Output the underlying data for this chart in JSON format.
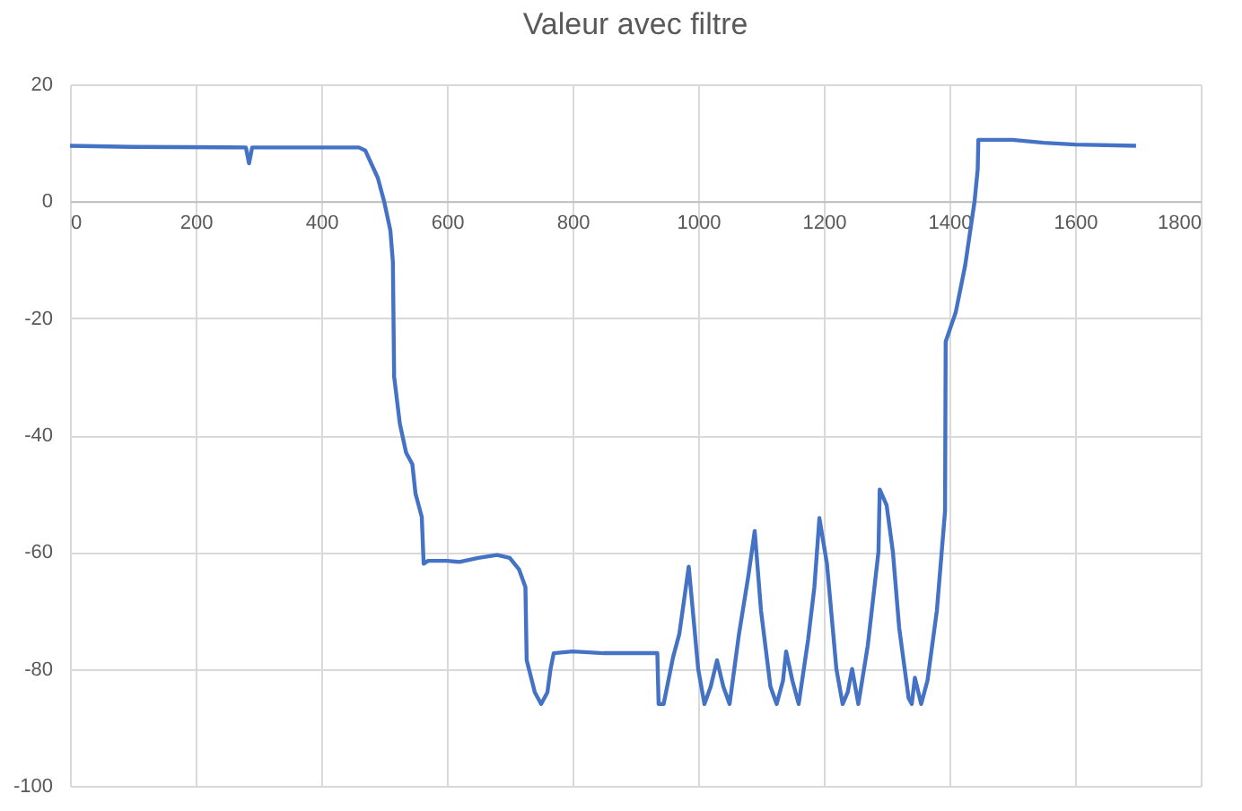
{
  "chart_data": {
    "type": "line",
    "title": "Valeur avec filtre",
    "x": [
      0,
      100,
      280,
      285,
      290,
      460,
      470,
      490,
      500,
      510,
      514,
      516,
      525,
      535,
      545,
      550,
      560,
      563,
      570,
      600,
      620,
      650,
      680,
      700,
      715,
      725,
      727,
      740,
      750,
      760,
      765,
      770,
      800,
      850,
      900,
      935,
      937,
      945,
      960,
      970,
      985,
      1000,
      1010,
      1020,
      1030,
      1040,
      1050,
      1065,
      1080,
      1090,
      1100,
      1115,
      1125,
      1135,
      1140,
      1150,
      1160,
      1175,
      1185,
      1193,
      1205,
      1220,
      1230,
      1238,
      1245,
      1255,
      1270,
      1287,
      1289,
      1300,
      1310,
      1320,
      1335,
      1340,
      1345,
      1355,
      1365,
      1380,
      1393,
      1394,
      1410,
      1425,
      1440,
      1445,
      1446,
      1500,
      1550,
      1600,
      1697
    ],
    "series": [
      {
        "color": "#4472c4",
        "values": [
          9.5,
          9.3,
          9.2,
          6.5,
          9.2,
          9.2,
          8.7,
          4,
          0,
          -5,
          -10.4,
          -30,
          -38,
          -43,
          -45,
          -50,
          -54,
          -62,
          -61.5,
          -61.5,
          -61.7,
          -61,
          -60.5,
          -61,
          -63,
          -66,
          -78.5,
          -84,
          -86,
          -84,
          -80,
          -77.3,
          -77,
          -77.3,
          -77.3,
          -77.3,
          -86,
          -86,
          -78,
          -74,
          -62.5,
          -80,
          -86,
          -83,
          -78.5,
          -83,
          -86,
          -74,
          -64,
          -56.4,
          -70,
          -83,
          -86,
          -82,
          -77,
          -82,
          -86,
          -75,
          -66,
          -54.2,
          -62,
          -80,
          -86,
          -84,
          -80,
          -86,
          -76,
          -60,
          -49.3,
          -52,
          -60,
          -73,
          -85,
          -86,
          -81.5,
          -86,
          -82,
          -70,
          -53,
          -24,
          -19,
          -11,
          0,
          5.5,
          10.5,
          10.5,
          10,
          9.7,
          9.5
        ]
      }
    ],
    "xlim": [
      0,
      1800
    ],
    "xticks": [
      0,
      200,
      400,
      600,
      800,
      1000,
      1200,
      1400,
      1600,
      1800
    ],
    "ylim": [
      -100,
      20
    ],
    "yticks": [
      -100,
      -80,
      -60,
      -40,
      -20,
      0,
      20
    ],
    "grid": true,
    "legend": false,
    "marker": "none",
    "line_style": "solid"
  }
}
